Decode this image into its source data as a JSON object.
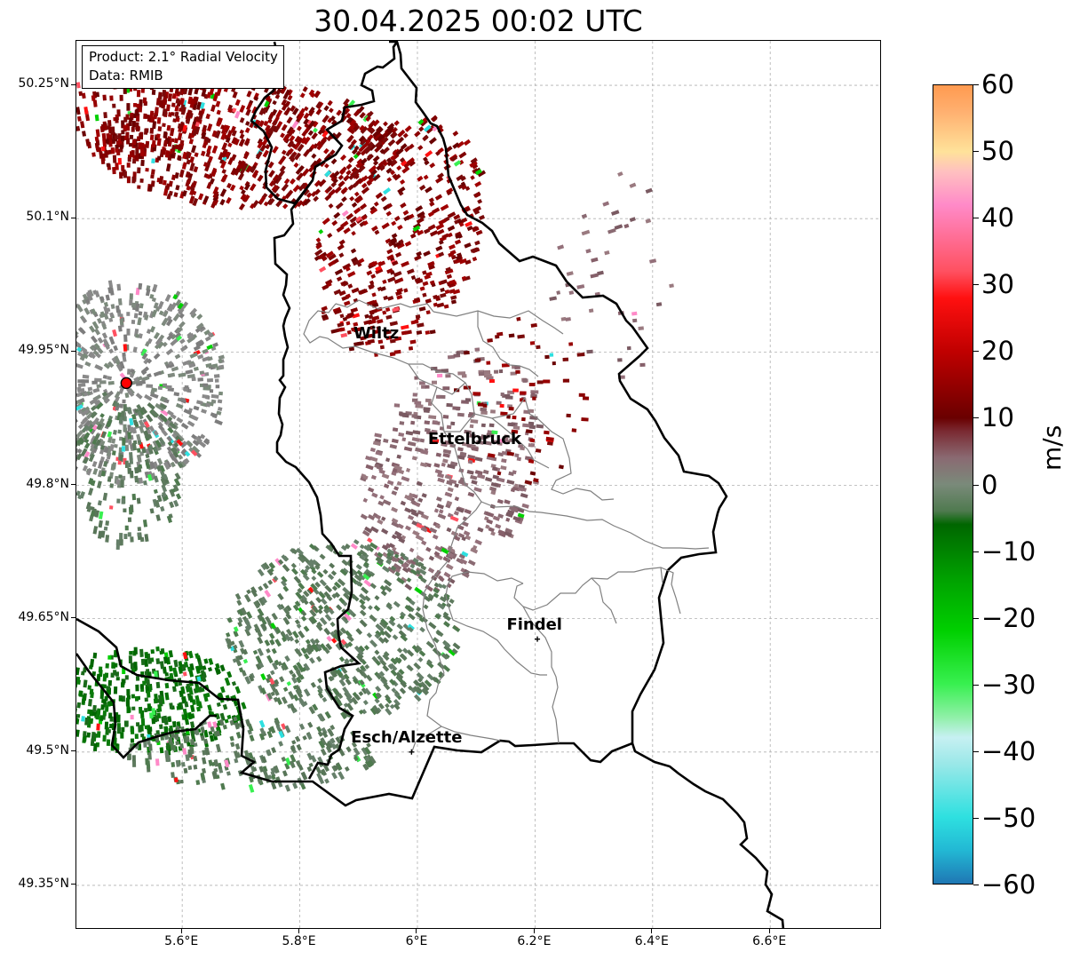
{
  "title": "30.04.2025 00:02 UTC",
  "info": {
    "product": "Product: 2.1° Radial Velocity",
    "data_source": "Data: RMIB"
  },
  "map": {
    "lon_range": [
      5.42,
      6.79
    ],
    "lat_range": [
      49.3,
      50.3
    ],
    "lon_ticks": [
      {
        "value": 5.6,
        "label": "5.6°E"
      },
      {
        "value": 5.8,
        "label": "5.8°E"
      },
      {
        "value": 6.0,
        "label": "6°E"
      },
      {
        "value": 6.2,
        "label": "6.2°E"
      },
      {
        "value": 6.4,
        "label": "6.4°E"
      },
      {
        "value": 6.6,
        "label": "6.6°E"
      }
    ],
    "lat_ticks": [
      {
        "value": 50.25,
        "label": "50.25°N"
      },
      {
        "value": 50.1,
        "label": "50.1°N"
      },
      {
        "value": 49.95,
        "label": "49.95°N"
      },
      {
        "value": 49.8,
        "label": "49.8°N"
      },
      {
        "value": 49.65,
        "label": "49.65°N"
      },
      {
        "value": 49.5,
        "label": "49.5°N"
      },
      {
        "value": 49.35,
        "label": "49.35°N"
      }
    ],
    "radar_site": {
      "lon": 5.505,
      "lat": 49.915
    },
    "cities": [
      {
        "name": "Wiltz",
        "lon": 5.935,
        "lat": 49.966,
        "marker": false
      },
      {
        "name": "Ettelbruck",
        "lon": 6.104,
        "lat": 49.847,
        "marker": false
      },
      {
        "name": "Findel",
        "lon": 6.204,
        "lat": 49.627,
        "marker": true
      },
      {
        "name": "Esch/Alzette",
        "lon": 5.99,
        "lat": 49.5,
        "marker": true
      }
    ]
  },
  "colorbar": {
    "label": "m/s",
    "min": -60,
    "max": 60,
    "ticks": [
      "60",
      "50",
      "40",
      "30",
      "20",
      "10",
      "0",
      "−10",
      "−20",
      "−30",
      "−40",
      "−50",
      "−60"
    ],
    "stops": [
      {
        "value": -60,
        "color": "#1f77b4"
      },
      {
        "value": -55,
        "color": "#22b8d4"
      },
      {
        "value": -50,
        "color": "#2ee0e0"
      },
      {
        "value": -42,
        "color": "#9ae8e8"
      },
      {
        "value": -38,
        "color": "#c7f0f2"
      },
      {
        "value": -35,
        "color": "#90f0a8"
      },
      {
        "value": -30,
        "color": "#38f050"
      },
      {
        "value": -22,
        "color": "#00d000"
      },
      {
        "value": -14,
        "color": "#00a000"
      },
      {
        "value": -6,
        "color": "#006600"
      },
      {
        "value": -4,
        "color": "#4f7a4f"
      },
      {
        "value": 0,
        "color": "#7a8a7a"
      },
      {
        "value": 4,
        "color": "#8a6a72"
      },
      {
        "value": 8,
        "color": "#7a2a32"
      },
      {
        "value": 10,
        "color": "#6a0000"
      },
      {
        "value": 20,
        "color": "#c00000"
      },
      {
        "value": 28,
        "color": "#ff1010"
      },
      {
        "value": 32,
        "color": "#ff5060"
      },
      {
        "value": 42,
        "color": "#ff8ac8"
      },
      {
        "value": 47,
        "color": "#ffc0c0"
      },
      {
        "value": 50,
        "color": "#ffe29a"
      },
      {
        "value": 56,
        "color": "#ffb070"
      },
      {
        "value": 60,
        "color": "#ff9a50"
      }
    ]
  }
}
